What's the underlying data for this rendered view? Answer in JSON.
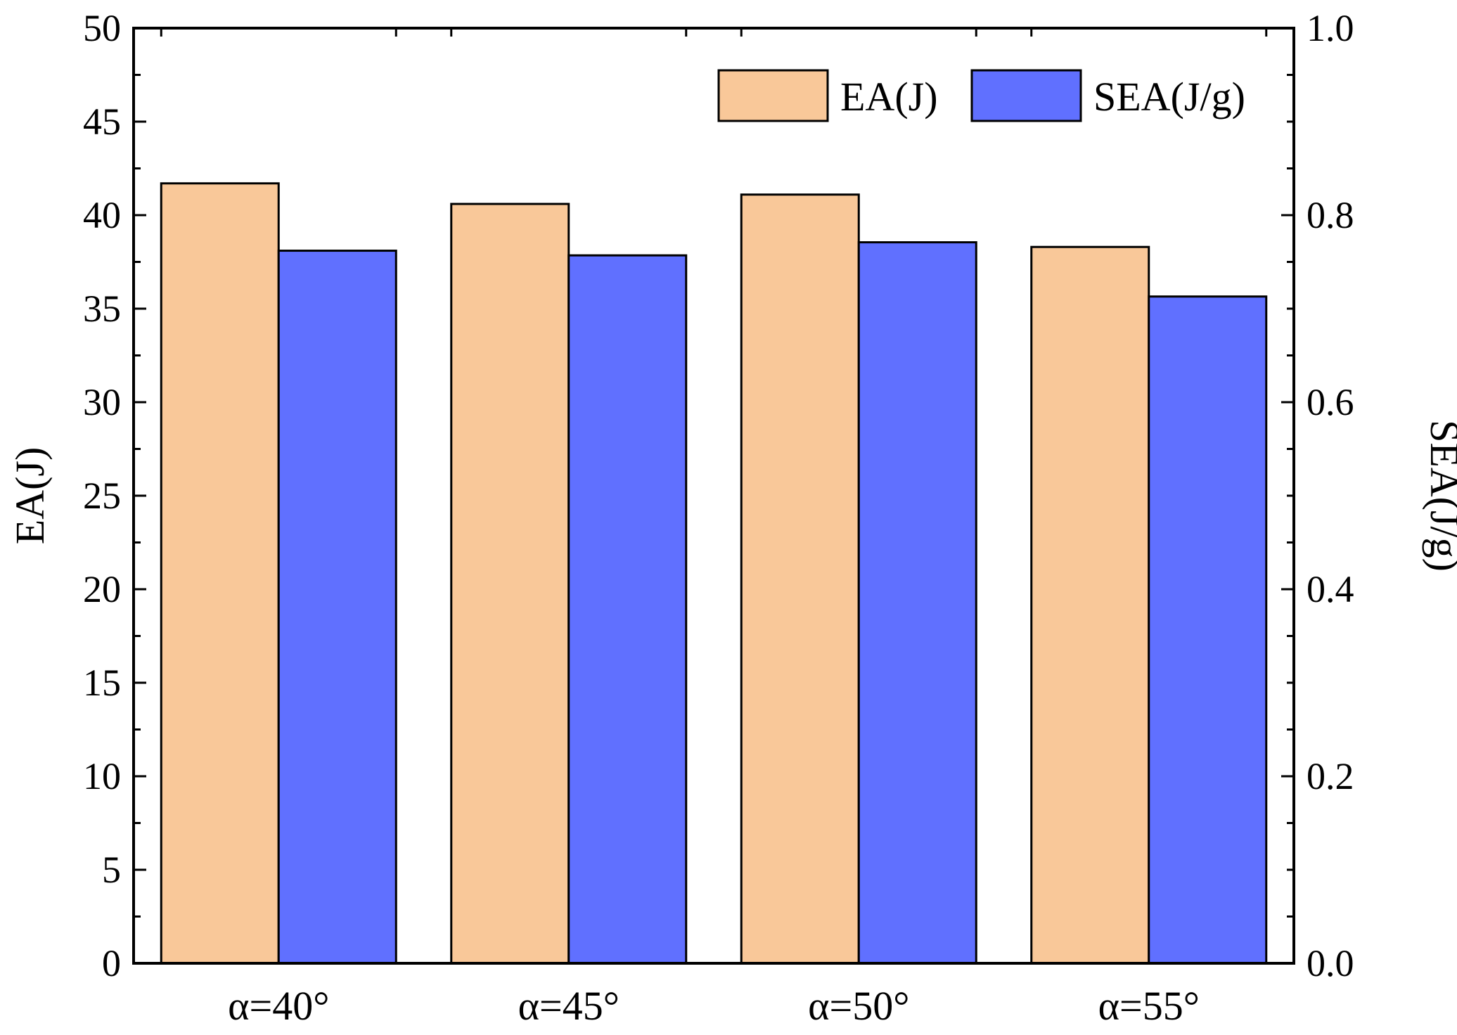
{
  "chart_data": {
    "type": "bar",
    "categories": [
      "α=40°",
      "α=45°",
      "α=50°",
      "α=55°"
    ],
    "series": [
      {
        "name": "EA(J)",
        "axis": "left",
        "color": "#F9C899",
        "values": [
          41.7,
          40.6,
          41.1,
          38.3
        ]
      },
      {
        "name": "SEA(J/g)",
        "axis": "right",
        "color": "#6070FF",
        "values": [
          0.762,
          0.757,
          0.771,
          0.713
        ]
      }
    ],
    "ylabel": "EA(J)",
    "y2label": "SEA(J/g)",
    "ylim": [
      0,
      50
    ],
    "y2lim": [
      0,
      1.0
    ],
    "yticks": [
      "0",
      "5",
      "10",
      "15",
      "20",
      "25",
      "30",
      "35",
      "40",
      "45",
      "50"
    ],
    "y2ticks": [
      "0.0",
      "0.2",
      "0.4",
      "0.6",
      "0.8",
      "1.0"
    ],
    "legend_position": "top-right",
    "grid": false
  }
}
